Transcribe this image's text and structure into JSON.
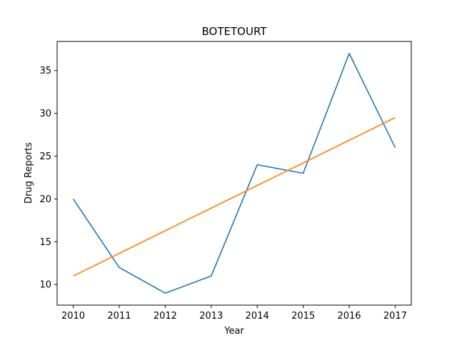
{
  "chart_data": {
    "type": "line",
    "title": "BOTETOURT",
    "xlabel": "Year",
    "ylabel": "Drug Reports",
    "x": [
      2010,
      2011,
      2012,
      2013,
      2014,
      2015,
      2016,
      2017
    ],
    "xlim": [
      2009.65,
      2017.35
    ],
    "ylim": [
      7.6,
      38.4
    ],
    "yticks": [
      10,
      15,
      20,
      25,
      30,
      35
    ],
    "grid": false,
    "legend": "none",
    "series": [
      {
        "values": [
          20,
          12,
          9,
          11,
          24,
          23,
          37,
          26
        ],
        "color": "#1f77b4"
      },
      {
        "values": [
          11.0,
          13.64,
          16.29,
          18.93,
          21.57,
          24.21,
          26.86,
          29.5
        ],
        "color": "#ff7f0e"
      }
    ]
  }
}
